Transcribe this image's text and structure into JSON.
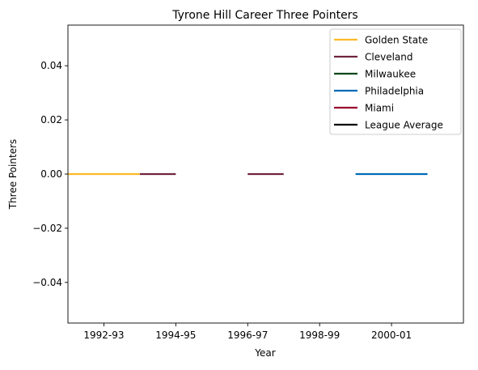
{
  "chart_data": {
    "type": "line",
    "title": "Tyrone Hill Career Three Pointers",
    "xlabel": "Year",
    "ylabel": "Three Pointers",
    "x_tick_labels": [
      "1992-93",
      "1994-95",
      "1996-97",
      "1998-99",
      "2000-01"
    ],
    "x_tick_positions": [
      1,
      3,
      5,
      7,
      9
    ],
    "xlim": [
      0,
      11
    ],
    "ylim": [
      -0.055,
      0.055
    ],
    "y_ticks": [
      -0.04,
      -0.02,
      0.0,
      0.02,
      0.04
    ],
    "y_tick_labels": [
      "−0.04",
      "−0.02",
      "0.00",
      "0.02",
      "0.04"
    ],
    "grid": false,
    "legend_position": "top-right",
    "series": [
      {
        "name": "Golden State",
        "color": "#FDB927",
        "segments": [
          [
            [
              0,
              0
            ],
            [
              2,
              0
            ]
          ]
        ]
      },
      {
        "name": "Cleveland",
        "color": "#6F263D",
        "segments": [
          [
            [
              2,
              0
            ],
            [
              3,
              0
            ]
          ],
          [
            [
              5,
              0
            ],
            [
              6,
              0
            ]
          ]
        ]
      },
      {
        "name": "Milwaukee",
        "color": "#00471B",
        "segments": []
      },
      {
        "name": "Philadelphia",
        "color": "#006BB6",
        "segments": [
          [
            [
              8,
              0
            ],
            [
              10,
              0
            ]
          ]
        ]
      },
      {
        "name": "Miami",
        "color": "#98002E",
        "segments": []
      },
      {
        "name": "League Average",
        "color": "#000000",
        "segments": []
      }
    ]
  }
}
